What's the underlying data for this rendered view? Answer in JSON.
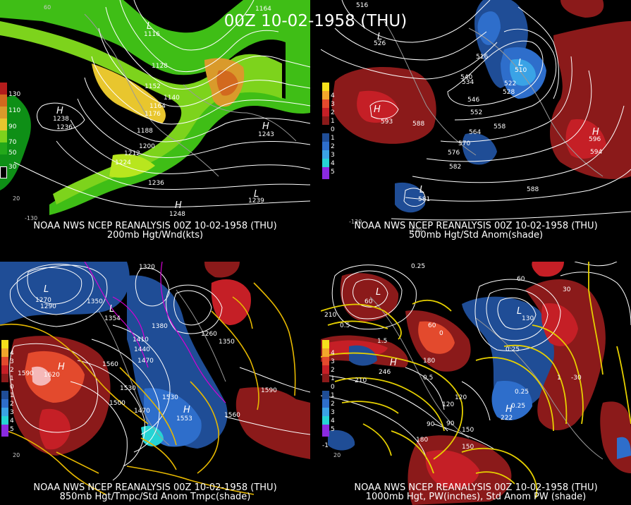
{
  "title": "00Z 10-02-1958 (THU)",
  "panels": [
    {
      "id": "p200",
      "line1": "NOAA NWS NCEP REANALYSIS 00Z 10-02-1958 (THU)",
      "line2": "200mb Hgt/Wnd(kts)",
      "legend": [
        {
          "label": "130",
          "color": "#b31c1c"
        },
        {
          "label": "",
          "color": "#d2691e"
        },
        {
          "label": "110",
          "color": "#d99a2b"
        },
        {
          "label": "",
          "color": "#e8c62e"
        },
        {
          "label": "90",
          "color": "#b8e61e"
        },
        {
          "label": "",
          "color": "#7dd31c"
        },
        {
          "label": "70",
          "color": "#3fbe16"
        },
        {
          "label": "",
          "color": "#23a81a"
        },
        {
          "label": "50",
          "color": "#0e8f16"
        },
        {
          "label": "",
          "color": "#006a10"
        },
        {
          "label": "30",
          "color": "#000000"
        }
      ],
      "contours": [
        "1128",
        "1152",
        "1140",
        "1164",
        "1176",
        "1188",
        "1200",
        "1212",
        "1224",
        "1236",
        "1236",
        "1164",
        "1248"
      ],
      "highs": [
        {
          "lab": "H",
          "val": "1238"
        },
        {
          "lab": "H",
          "val": "1243"
        },
        {
          "lab": "H",
          "val": "1248"
        }
      ],
      "lows": [
        {
          "lab": "L",
          "val": "1116"
        },
        {
          "lab": "L",
          "val": "1239"
        }
      ],
      "axis": [
        "60",
        "-130",
        "20"
      ]
    },
    {
      "id": "p500",
      "line1": "NOAA NWS NCEP REANALYSIS 00Z 10-02-1958 (THU)",
      "line2": "500mb Hgt/Std Anom(shade)",
      "legend": [
        {
          "label": "",
          "color": "#f5e11c"
        },
        {
          "label": "4",
          "color": "#f2a72b"
        },
        {
          "label": "3",
          "color": "#e34a2d"
        },
        {
          "label": "2",
          "color": "#c51f26"
        },
        {
          "label": "1",
          "color": "#8b1a1a"
        },
        {
          "label": "0",
          "color": "#000000"
        },
        {
          "label": "1",
          "color": "#1f4d96"
        },
        {
          "label": "2",
          "color": "#2e6ecb"
        },
        {
          "label": "3",
          "color": "#3aa3e6"
        },
        {
          "label": "4",
          "color": "#25d4d4"
        },
        {
          "label": "5",
          "color": "#8a2ae0"
        }
      ],
      "contours": [
        "516",
        "516",
        "510",
        "540",
        "534",
        "540",
        "546",
        "522",
        "528",
        "552",
        "558",
        "564",
        "570",
        "576",
        "576",
        "582",
        "582",
        "588",
        "594",
        "588",
        "594"
      ],
      "highs": [
        {
          "lab": "H",
          "val": "593"
        },
        {
          "lab": "H",
          "val": "596"
        }
      ],
      "lows": [
        {
          "lab": "L",
          "val": "526"
        },
        {
          "lab": "L",
          "val": "510"
        },
        {
          "lab": "L",
          "val": "581"
        }
      ],
      "axis": [
        "-130",
        "-120"
      ]
    },
    {
      "id": "p850",
      "line1": "NOAA NWS NCEP REANALYSIS 00Z 10-02-1958 (THU)",
      "line2": "850mb Hgt/Tmpc/Std Anom Tmpc(shade)",
      "legend": [
        {
          "label": "",
          "color": "#f5e11c"
        },
        {
          "label": "4",
          "color": "#f2a72b"
        },
        {
          "label": "3",
          "color": "#e34a2d"
        },
        {
          "label": "2",
          "color": "#c51f26"
        },
        {
          "label": "1",
          "color": "#8b1a1a"
        },
        {
          "label": "0",
          "color": "#000000"
        },
        {
          "label": "1",
          "color": "#1f4d96"
        },
        {
          "label": "2",
          "color": "#2e6ecb"
        },
        {
          "label": "3",
          "color": "#3aa3e6"
        },
        {
          "label": "4",
          "color": "#25d4d4"
        },
        {
          "label": "5",
          "color": "#8a2ae0"
        }
      ],
      "contours": [
        "1320",
        "1350",
        "1380",
        "1410",
        "1440",
        "1470",
        "1500",
        "1530",
        "1560",
        "1560",
        "1590",
        "1590",
        "1500",
        "1530",
        "1350",
        "1290",
        "1260"
      ],
      "highs": [
        {
          "lab": "H",
          "val": "1620"
        },
        {
          "lab": "H",
          "val": "1553"
        },
        {
          "lab": "H",
          "val": "1470"
        }
      ],
      "lows": [
        {
          "lab": "L",
          "val": "1270"
        },
        {
          "lab": "L",
          "val": "1354"
        }
      ],
      "axis": [
        "20"
      ]
    },
    {
      "id": "p1000",
      "line1": "NOAA NWS NCEP REANALYSIS 00Z 10-02-1958 (THU)",
      "line2": "1000mb Hgt, PW(inches), Std Anom PW (shade)",
      "legend": [
        {
          "label": "",
          "color": "#f5e11c"
        },
        {
          "label": "4",
          "color": "#f2a72b"
        },
        {
          "label": "3",
          "color": "#e34a2d"
        },
        {
          "label": "2",
          "color": "#c51f26"
        },
        {
          "label": "1",
          "color": "#8b1a1a"
        },
        {
          "label": "0",
          "color": "#000000"
        },
        {
          "label": "1",
          "color": "#1f4d96"
        },
        {
          "label": "2",
          "color": "#2e6ecb"
        },
        {
          "label": "3",
          "color": "#3aa3e6"
        },
        {
          "label": "4",
          "color": "#25d4d4"
        },
        {
          "label": "5",
          "color": "#8a2ae0"
        }
      ],
      "contours": [
        "210",
        "210",
        "180",
        "150",
        "120",
        "90",
        "60",
        "30",
        "0",
        "60",
        "0.25",
        "0.5",
        "0.5",
        "0.25",
        "0.25",
        "0.25",
        "1",
        "1.5",
        "150",
        "180",
        "120",
        "90",
        "-30",
        "-1"
      ],
      "highs": [
        {
          "lab": "H",
          "val": "222"
        },
        {
          "lab": "H",
          "val": "246"
        }
      ],
      "lows": [
        {
          "lab": "L",
          "val": "60"
        },
        {
          "lab": "L",
          "val": "130"
        }
      ],
      "axis": [
        "20"
      ]
    }
  ]
}
